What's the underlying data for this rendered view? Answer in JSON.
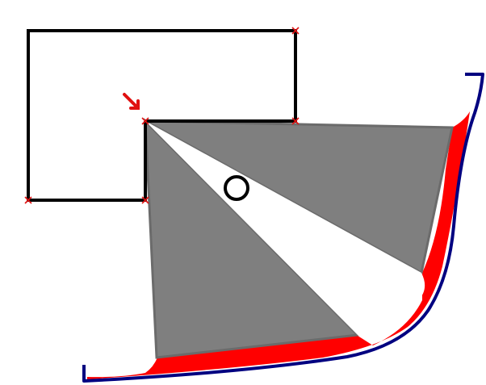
{
  "colors": {
    "background": "#ffffff",
    "outline": "#000000",
    "shadow": "#7f7f7f",
    "shadow_edge": "#6b6b6b",
    "highlight": "#ff0000",
    "hull": "#000080",
    "marker": "#e01010"
  },
  "icons": {
    "arrow": "arrow-down-right-icon",
    "vertex_marker": "x-mark-icon",
    "point": "circle-icon"
  }
}
